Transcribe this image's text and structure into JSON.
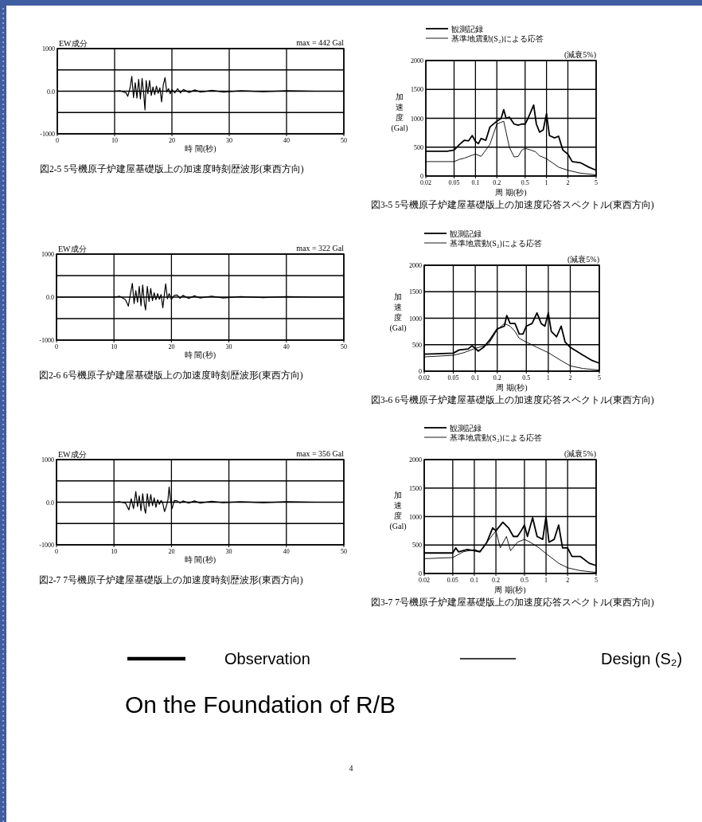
{
  "chart_data": [
    {
      "type": "line",
      "title": "EW成分",
      "xlabel": "時 間(秒)",
      "annotations": [
        "max = 442 Gal",
        "図2-5 5号機原子炉建屋基礎版上の加速度時刻歴波形(東西方向)"
      ],
      "xlim": [
        0,
        50
      ],
      "ylim": [
        -1000,
        1000
      ],
      "xticks": [
        0,
        10,
        20,
        30,
        40,
        50
      ],
      "yticks": [
        -1000,
        {
          "value": -500,
          "label": null
        },
        {
          "value": 0,
          "label": "0.0"
        },
        {
          "value": 500,
          "label": null
        },
        1000
      ],
      "grid": true,
      "series": [
        {
          "color": "#000000",
          "x": [
            0,
            10,
            11,
            12,
            12.3,
            12.7,
            13,
            13.3,
            13.6,
            13.9,
            14.2,
            14.5,
            14.8,
            15.1,
            15.3,
            15.5,
            15.8,
            16.1,
            16.4,
            16.7,
            17,
            17.3,
            17.6,
            17.9,
            18.2,
            18.5,
            18.8,
            19.1,
            19.4,
            19.7,
            20,
            20.5,
            21,
            21.5,
            22,
            23,
            24,
            25,
            27,
            29,
            32,
            36,
            40,
            45,
            50
          ],
          "values": [
            0,
            0,
            10,
            -40,
            -120,
            80,
            350,
            -150,
            200,
            -160,
            280,
            -180,
            300,
            -100,
            -440,
            250,
            -60,
            250,
            -100,
            100,
            -80,
            120,
            -50,
            80,
            -250,
            150,
            320,
            -20,
            60,
            -60,
            40,
            -40,
            60,
            -40,
            40,
            -30,
            30,
            -20,
            20,
            -20,
            10,
            -10,
            10,
            0,
            0
          ]
        }
      ]
    },
    {
      "type": "line",
      "xlabel": "周 期(秒)",
      "ylabel": "加速度(Gal)",
      "annotations": [
        "(減衰5%)",
        "図3-5 5号機原子炉建屋基礎版上の加速度応答スペクトル(東西方向)"
      ],
      "log": "x",
      "xlim": [
        0.02,
        5
      ],
      "ylim": [
        0,
        2000
      ],
      "xticks": [
        0.02,
        0.05,
        0.1,
        0.2,
        0.5,
        1,
        2,
        5
      ],
      "yticks": [
        0,
        500,
        1000,
        1500,
        2000
      ],
      "grid": true,
      "legend": "top",
      "series": [
        {
          "name": "観測記録",
          "color": "#000000",
          "x": [
            0.02,
            0.04,
            0.05,
            0.06,
            0.07,
            0.08,
            0.09,
            0.1,
            0.11,
            0.12,
            0.14,
            0.16,
            0.2,
            0.23,
            0.25,
            0.27,
            0.3,
            0.35,
            0.4,
            0.45,
            0.5,
            0.55,
            0.66,
            0.72,
            0.8,
            0.9,
            1.0,
            1.1,
            1.3,
            1.48,
            1.7,
            2,
            2.3,
            3,
            4,
            5
          ],
          "values": [
            430,
            430,
            450,
            550,
            620,
            610,
            700,
            600,
            560,
            650,
            620,
            850,
            950,
            1000,
            1150,
            1000,
            1020,
            900,
            880,
            900,
            900,
            1000,
            1230,
            900,
            760,
            800,
            1080,
            700,
            660,
            690,
            450,
            380,
            250,
            230,
            150,
            100
          ]
        },
        {
          "name": "基準地震動(S₂)による応答",
          "color": "#000000",
          "x": [
            0.02,
            0.05,
            0.06,
            0.07,
            0.09,
            0.1,
            0.12,
            0.14,
            0.16,
            0.2,
            0.25,
            0.3,
            0.35,
            0.4,
            0.45,
            0.5,
            0.6,
            0.7,
            0.8,
            1,
            1.5,
            2,
            3,
            5
          ],
          "values": [
            250,
            250,
            290,
            310,
            360,
            380,
            340,
            450,
            550,
            900,
            950,
            500,
            330,
            340,
            450,
            480,
            450,
            420,
            350,
            300,
            150,
            100,
            50,
            20
          ]
        }
      ]
    },
    {
      "type": "line",
      "title": "EW成分",
      "xlabel": "時 間(秒)",
      "annotations": [
        "max = 322 Gal",
        "図2-6 6号機原子炉建屋基礎版上の加速度時刻歴波形(東西方向)"
      ],
      "xlim": [
        0,
        50
      ],
      "ylim": [
        -1000,
        1000
      ],
      "xticks": [
        0,
        10,
        20,
        30,
        40,
        50
      ],
      "yticks": [
        -1000,
        {
          "value": -500,
          "label": null
        },
        {
          "value": 0,
          "label": "0.0"
        },
        {
          "value": 500,
          "label": null
        },
        1000
      ],
      "grid": true,
      "series": [
        {
          "color": "#000000",
          "x": [
            0,
            10,
            11,
            12,
            12.5,
            12.9,
            13.2,
            13.5,
            13.8,
            14.1,
            14.4,
            14.7,
            15,
            15.3,
            15.5,
            15.8,
            16.1,
            16.4,
            16.7,
            17,
            17.3,
            17.6,
            17.9,
            18.2,
            18.5,
            18.8,
            19,
            19.3,
            19.6,
            20,
            20.5,
            21,
            21.5,
            22,
            23,
            24,
            25,
            27,
            29,
            32,
            36,
            40,
            45,
            50
          ],
          "values": [
            0,
            0,
            20,
            -60,
            -210,
            100,
            320,
            -150,
            150,
            -120,
            250,
            -200,
            280,
            -150,
            -300,
            250,
            -100,
            200,
            -80,
            100,
            -60,
            80,
            -50,
            60,
            -250,
            100,
            310,
            -40,
            80,
            -50,
            40,
            50,
            -30,
            40,
            -30,
            30,
            -20,
            20,
            -20,
            10,
            -10,
            10,
            0,
            0
          ]
        }
      ]
    },
    {
      "type": "line",
      "xlabel": "周 期(秒)",
      "ylabel": "加速度(Gal)",
      "annotations": [
        "(減衰5%)",
        "図3-6 6号機原子炉建屋基礎版上の加速度応答スペクトル(東西方向)"
      ],
      "log": "x",
      "xlim": [
        0.02,
        5
      ],
      "ylim": [
        0,
        2000
      ],
      "xticks": [
        0.02,
        0.05,
        0.1,
        0.2,
        0.5,
        1,
        2,
        5
      ],
      "yticks": [
        0,
        500,
        1000,
        1500,
        2000
      ],
      "grid": true,
      "legend": "top",
      "series": [
        {
          "name": "観測記録",
          "color": "#000000",
          "x": [
            0.02,
            0.03,
            0.05,
            0.06,
            0.08,
            0.09,
            0.1,
            0.11,
            0.13,
            0.16,
            0.2,
            0.25,
            0.27,
            0.3,
            0.35,
            0.4,
            0.45,
            0.5,
            0.6,
            0.7,
            0.8,
            0.9,
            1.0,
            1.1,
            1.3,
            1.5,
            1.7,
            2,
            3,
            4,
            5
          ],
          "values": [
            320,
            330,
            340,
            400,
            420,
            480,
            430,
            380,
            450,
            600,
            800,
            850,
            1050,
            900,
            900,
            700,
            700,
            850,
            900,
            1100,
            900,
            850,
            1100,
            750,
            650,
            850,
            550,
            450,
            300,
            200,
            150
          ]
        },
        {
          "name": "基準地震動(S₂)による応答",
          "color": "#000000",
          "x": [
            0.02,
            0.05,
            0.07,
            0.1,
            0.15,
            0.2,
            0.25,
            0.3,
            0.35,
            0.4,
            0.5,
            0.7,
            1,
            1.5,
            2,
            3,
            5
          ],
          "values": [
            270,
            300,
            350,
            430,
            500,
            780,
            900,
            850,
            750,
            620,
            550,
            450,
            350,
            200,
            100,
            50,
            20
          ]
        }
      ]
    },
    {
      "type": "line",
      "title": "EW成分",
      "xlabel": "時 間(秒)",
      "annotations": [
        "max = 356 Gal",
        "図2-7 7号機原子炉建屋基礎版上の加速度時刻歴波形(東西方向)"
      ],
      "xlim": [
        0,
        50
      ],
      "ylim": [
        -1000,
        1000
      ],
      "xticks": [
        0,
        10,
        20,
        30,
        40,
        50
      ],
      "yticks": [
        -1000,
        {
          "value": -500,
          "label": null
        },
        {
          "value": 0,
          "label": "0.0"
        },
        {
          "value": 500,
          "label": null
        },
        1000
      ],
      "grid": true,
      "series": [
        {
          "color": "#000000",
          "x": [
            0,
            10,
            11,
            12,
            12.6,
            13,
            13.4,
            13.8,
            14.1,
            14.4,
            14.7,
            15,
            15.3,
            15.5,
            15.8,
            16.1,
            16.4,
            16.7,
            17,
            17.3,
            17.6,
            17.9,
            18.2,
            18.5,
            18.8,
            19.1,
            19.4,
            19.6,
            19.8,
            20.1,
            20.5,
            21,
            21.5,
            22,
            23,
            24,
            25,
            27,
            29,
            32,
            36,
            40,
            45,
            50
          ],
          "values": [
            0,
            0,
            10,
            -20,
            -180,
            80,
            -150,
            250,
            -100,
            150,
            -200,
            200,
            -150,
            -260,
            200,
            -100,
            180,
            -80,
            100,
            -120,
            60,
            -50,
            40,
            -30,
            -220,
            -100,
            60,
            360,
            100,
            -150,
            40,
            30,
            -20,
            30,
            -20,
            30,
            -20,
            20,
            -10,
            10,
            -10,
            10,
            0,
            0
          ]
        }
      ]
    },
    {
      "type": "line",
      "xlabel": "周 期(秒)",
      "ylabel": "加速度(Gal)",
      "annotations": [
        "(減衰5%)",
        "図3-7 7号機原子炉建屋基礎版上の加速度応答スペクトル(東西方向)"
      ],
      "log": "x",
      "xlim": [
        0.02,
        5
      ],
      "ylim": [
        0,
        2000
      ],
      "xticks": [
        0.02,
        0.05,
        0.1,
        0.2,
        0.5,
        1,
        2,
        5
      ],
      "yticks": [
        0,
        500,
        1000,
        1500,
        2000
      ],
      "grid": true,
      "legend": "top",
      "series": [
        {
          "name": "観測記録",
          "color": "#000000",
          "x": [
            0.02,
            0.05,
            0.055,
            0.06,
            0.08,
            0.1,
            0.12,
            0.15,
            0.18,
            0.2,
            0.25,
            0.3,
            0.35,
            0.4,
            0.45,
            0.5,
            0.55,
            0.65,
            0.75,
            0.9,
            1.0,
            1.1,
            1.3,
            1.5,
            1.7,
            2,
            2.3,
            3,
            4,
            5
          ],
          "values": [
            360,
            360,
            450,
            380,
            420,
            400,
            380,
            550,
            800,
            750,
            900,
            800,
            650,
            650,
            750,
            850,
            650,
            980,
            650,
            600,
            1000,
            550,
            600,
            850,
            450,
            450,
            300,
            300,
            180,
            140
          ]
        },
        {
          "name": "基準地震動(S₂)による応答",
          "color": "#000000",
          "x": [
            0.02,
            0.05,
            0.07,
            0.1,
            0.12,
            0.15,
            0.2,
            0.23,
            0.28,
            0.32,
            0.4,
            0.5,
            0.6,
            0.8,
            1,
            1.5,
            2,
            3,
            5
          ],
          "values": [
            260,
            280,
            380,
            420,
            390,
            550,
            750,
            450,
            650,
            400,
            550,
            600,
            550,
            450,
            350,
            180,
            100,
            50,
            20
          ]
        }
      ]
    },
    {
      "type": "other",
      "annotations": [
        "Observation",
        "Design (S₂)",
        "On the Foundation of R/B",
        "4"
      ]
    }
  ]
}
